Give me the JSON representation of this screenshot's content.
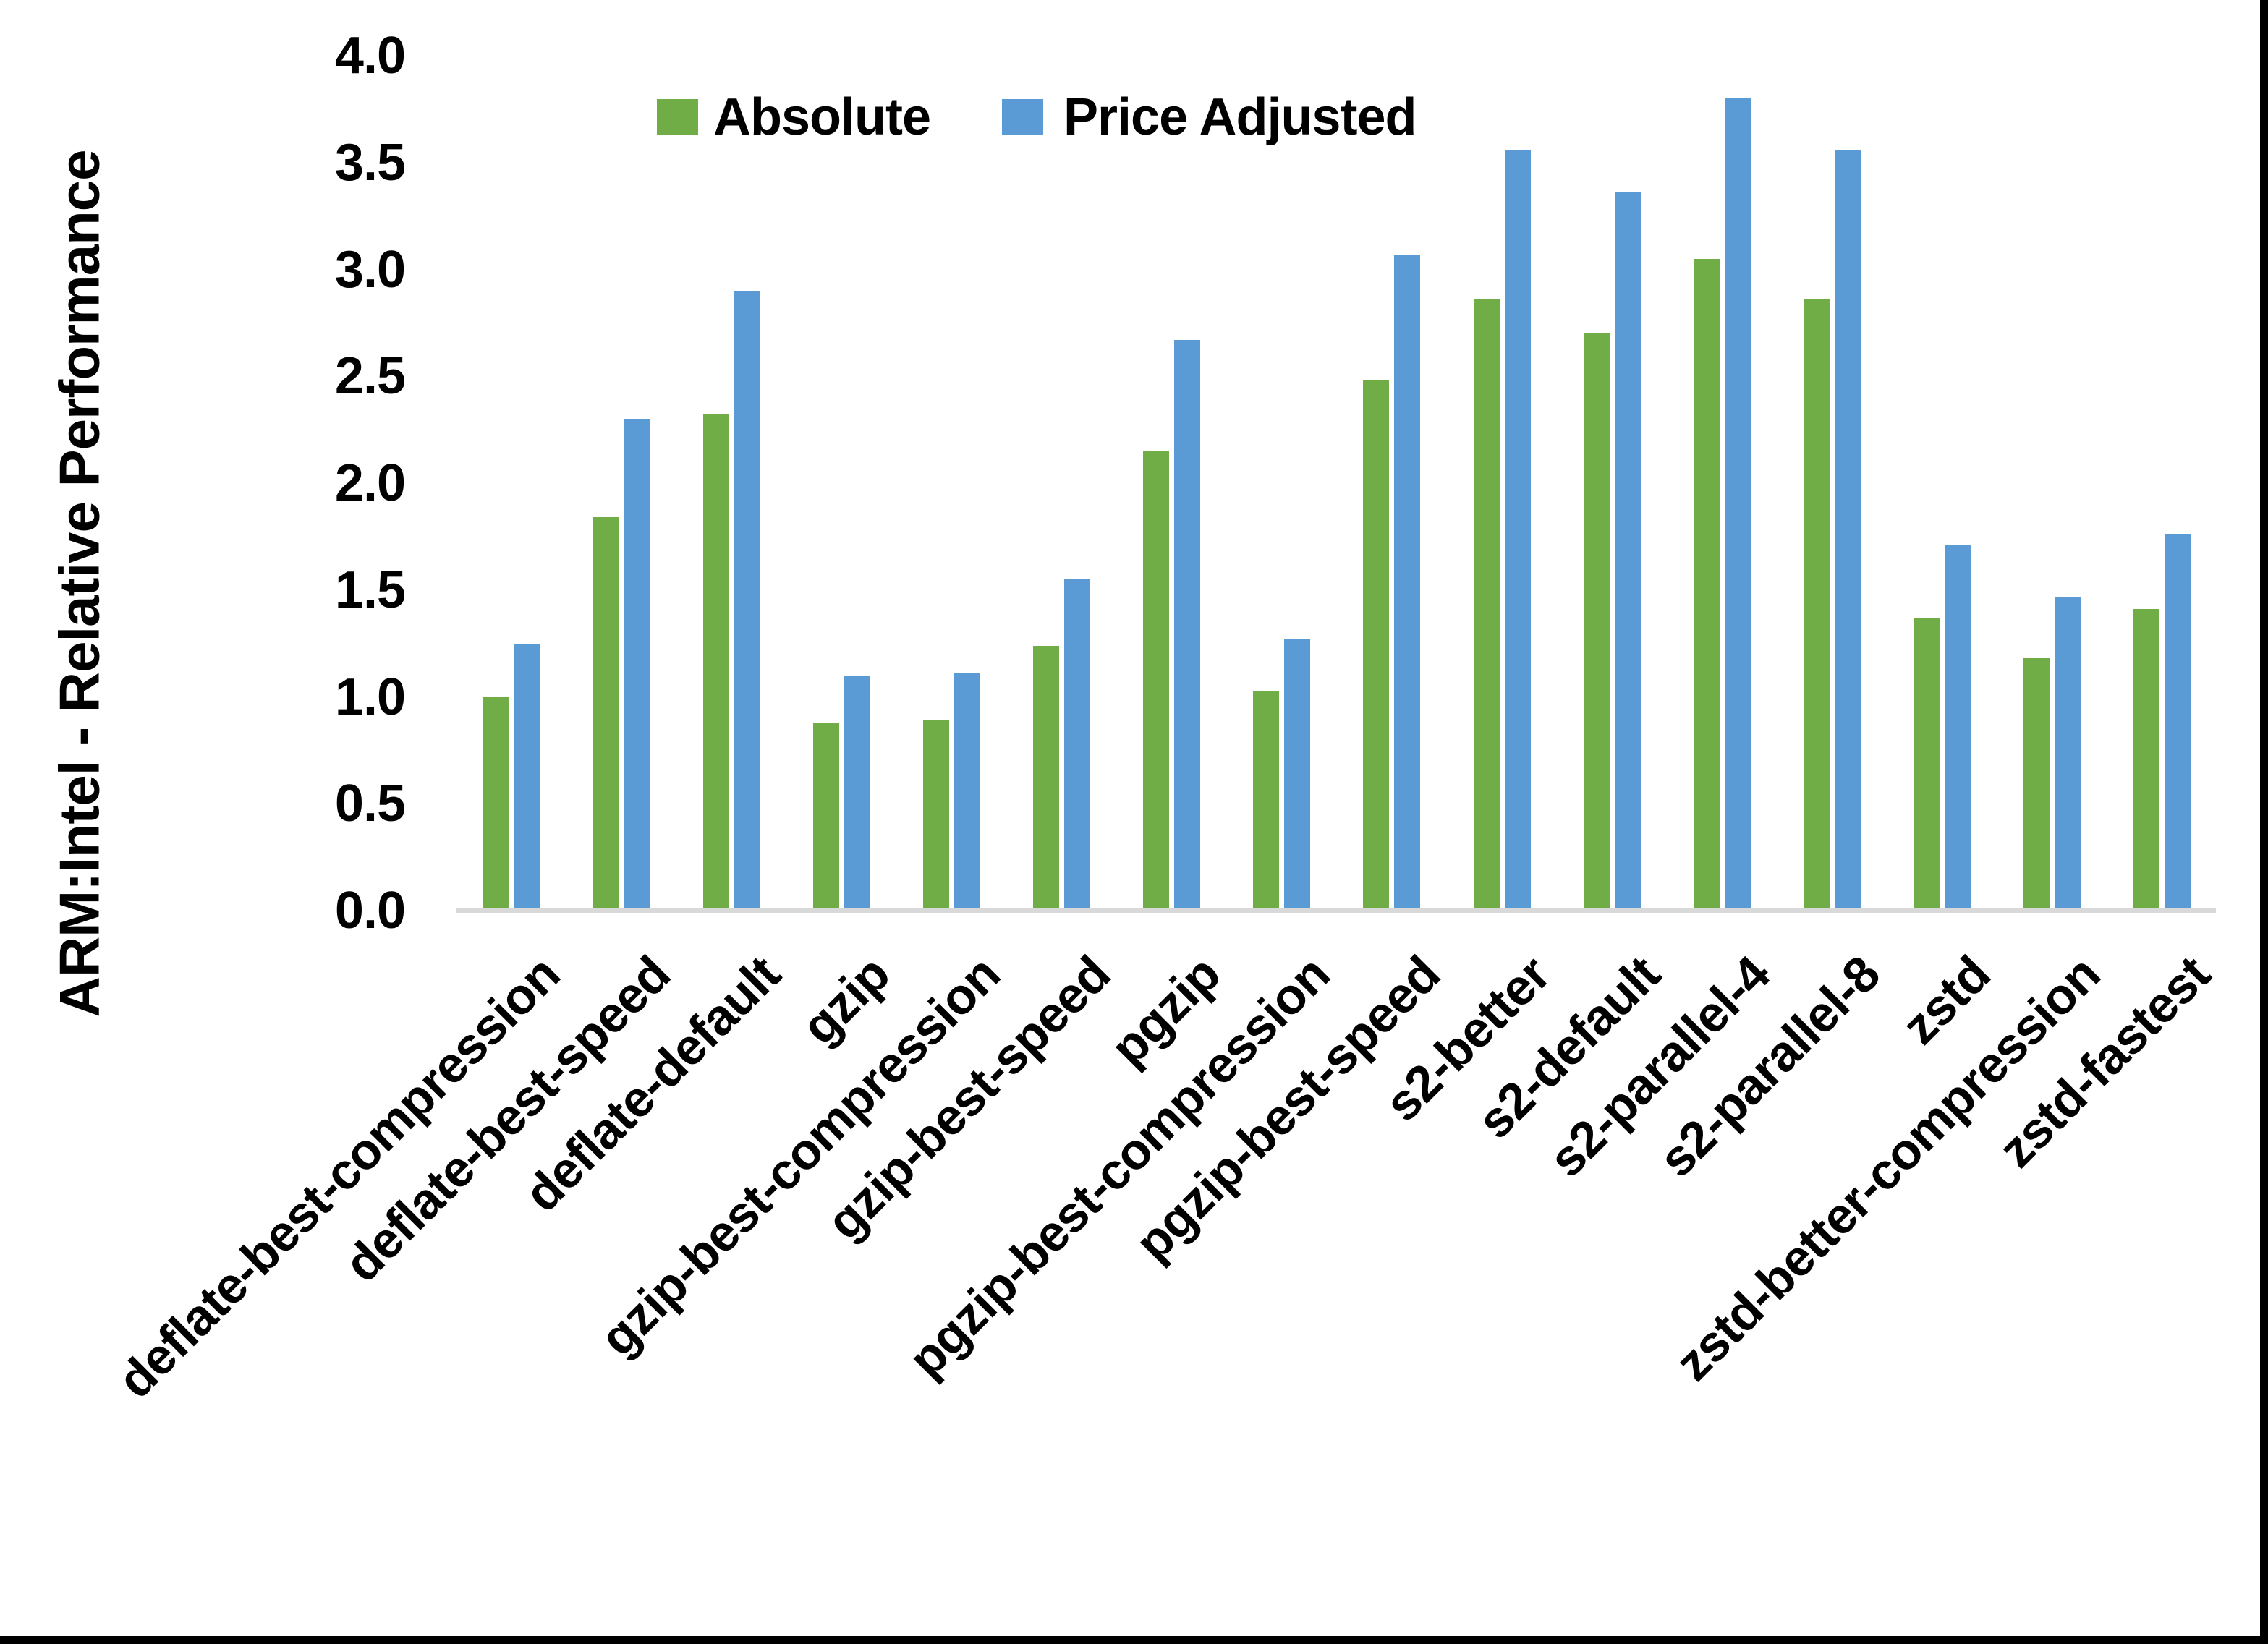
{
  "y_axis": {
    "title": "ARM:Intel - Relative Performance",
    "tick_labels": [
      "0.0",
      "0.5",
      "1.0",
      "1.5",
      "2.0",
      "2.5",
      "3.0",
      "3.5",
      "4.0"
    ],
    "min": 0,
    "max": 4
  },
  "legend": [
    {
      "label": "Absolute",
      "color": "#70AD47"
    },
    {
      "label": "Price Adjusted",
      "color": "#5B9BD5"
    }
  ],
  "chart_data": {
    "type": "bar",
    "title": "",
    "xlabel": "",
    "ylabel": "ARM:Intel - Relative Performance",
    "ylim": [
      0,
      4
    ],
    "grid": false,
    "legend_position": "top-center",
    "categories": [
      "deflate-best-compression",
      "deflate-best-speed",
      "deflate-default",
      "gzip",
      "gzip-best-compression",
      "gzip-best-speed",
      "pgzip",
      "pgzip-best-compression",
      "pgzip-best-speed",
      "s2-better",
      "s2-default",
      "s2-parallel-4",
      "s2-parallel-8",
      "zstd",
      "zstd-better-compression",
      "zstd-fastest"
    ],
    "series": [
      {
        "name": "Absolute",
        "color": "#70AD47",
        "values": [
          1.0,
          1.84,
          2.32,
          0.88,
          0.89,
          1.24,
          2.15,
          1.03,
          2.48,
          2.86,
          2.7,
          3.05,
          2.86,
          1.37,
          1.18,
          1.41
        ]
      },
      {
        "name": "Price Adjusted",
        "color": "#5B9BD5",
        "values": [
          1.25,
          2.3,
          2.9,
          1.1,
          1.11,
          1.55,
          2.67,
          1.27,
          3.07,
          3.56,
          3.36,
          3.8,
          3.56,
          1.71,
          1.47,
          1.76
        ]
      }
    ]
  },
  "style_colors": {
    "axis_line": "#D9D9D9",
    "text": "#000000",
    "screenshot_border": "#000000"
  }
}
